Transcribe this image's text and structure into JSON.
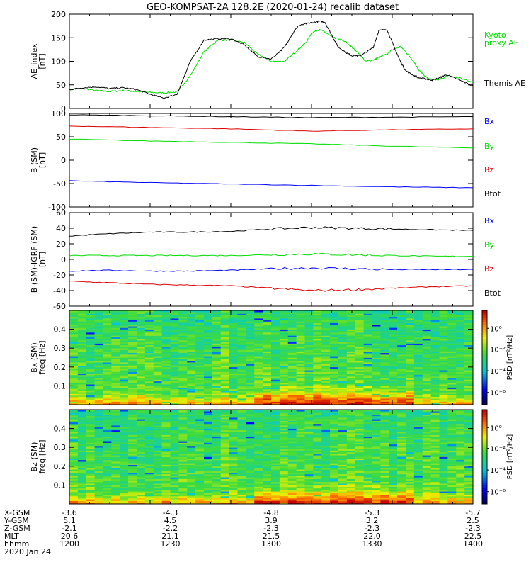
{
  "title": "GEO-KOMPSAT-2A 128.2E (2020-01-24) recalib dataset",
  "colors": {
    "black": "#000000",
    "blue": "#0000ff",
    "green": "#00dd00",
    "red": "#dd0000",
    "kyoto": "#00dd00"
  },
  "chart_data": [
    {
      "type": "line",
      "ylabel": "AE_index [nT]",
      "ylim": [
        0,
        200
      ],
      "yticks": [
        "0",
        "50",
        "100",
        "150",
        "200"
      ],
      "series": [
        {
          "name": "Kyoto proxy AE",
          "color": "#00dd00",
          "x": [
            0,
            5,
            10,
            15,
            20,
            25,
            30,
            35,
            40,
            45,
            50,
            55,
            60,
            65,
            70,
            75,
            80,
            82,
            85,
            88,
            90,
            93,
            95,
            98,
            100,
            103,
            105,
            108,
            110,
            113,
            115,
            118,
            120,
            123,
            125,
            128,
            130,
            133,
            135,
            138,
            140,
            145,
            150
          ],
          "y": [
            40,
            42,
            38,
            36,
            38,
            36,
            34,
            33,
            35,
            70,
            120,
            145,
            145,
            140,
            115,
            100,
            100,
            110,
            125,
            140,
            160,
            168,
            162,
            150,
            148,
            140,
            130,
            115,
            100,
            103,
            108,
            115,
            125,
            132,
            120,
            100,
            80,
            65,
            60,
            62,
            68,
            65,
            55
          ]
        },
        {
          "name": "Themis AE",
          "color": "#000000",
          "x": [
            0,
            5,
            10,
            15,
            20,
            25,
            30,
            35,
            40,
            45,
            50,
            55,
            60,
            65,
            70,
            75,
            80,
            82,
            85,
            88,
            90,
            93,
            95,
            98,
            100,
            103,
            105,
            108,
            110,
            113,
            115,
            118,
            120,
            123,
            125,
            128,
            130,
            133,
            135,
            138,
            140,
            145,
            150
          ],
          "y": [
            40,
            44,
            46,
            42,
            44,
            40,
            30,
            22,
            30,
            100,
            145,
            148,
            148,
            135,
            110,
            105,
            130,
            150,
            175,
            180,
            182,
            185,
            183,
            150,
            130,
            118,
            112,
            112,
            118,
            130,
            165,
            168,
            140,
            100,
            80,
            70,
            65,
            62,
            60,
            66,
            72,
            60,
            48
          ]
        }
      ]
    },
    {
      "type": "line",
      "ylabel": "B (SM) [nT]",
      "ylim": [
        -100,
        100
      ],
      "yticks": [
        "-100",
        "-50",
        "0",
        "50",
        "100"
      ],
      "series": [
        {
          "name": "Bx",
          "color": "#000000",
          "x": [
            0,
            30,
            60,
            90,
            120,
            150
          ],
          "y": [
            97,
            95,
            93,
            91,
            92,
            93
          ]
        },
        {
          "name": "By",
          "color": "#00dd00",
          "x": [
            0,
            30,
            60,
            90,
            120,
            150
          ],
          "y": [
            45,
            41,
            38,
            35,
            30,
            26
          ]
        },
        {
          "name": "Bz",
          "color": "#dd0000",
          "x": [
            0,
            30,
            60,
            90,
            120,
            150
          ],
          "y": [
            73,
            70,
            67,
            62,
            65,
            67
          ]
        },
        {
          "name": "Btot",
          "color": "#0000ff",
          "x": [
            0,
            30,
            60,
            90,
            120,
            150
          ],
          "y": [
            -44,
            -48,
            -51,
            -54,
            -57,
            -59
          ]
        }
      ]
    },
    {
      "type": "line",
      "ylabel": "B (SM)-IGRF (SM) [nT]",
      "ylim": [
        -60,
        60
      ],
      "yticks": [
        "-60",
        "-40",
        "-20",
        "0",
        "20",
        "40",
        "60"
      ],
      "series": [
        {
          "name": "Bx",
          "color": "#000000",
          "x": [
            0,
            15,
            30,
            45,
            60,
            75,
            90,
            105,
            120,
            135,
            150
          ],
          "y": [
            30,
            33,
            35,
            35,
            36,
            39,
            41,
            40,
            39,
            38,
            37
          ]
        },
        {
          "name": "By",
          "color": "#00dd00",
          "x": [
            0,
            15,
            30,
            45,
            60,
            75,
            90,
            105,
            120,
            135,
            150
          ],
          "y": [
            5,
            5,
            5,
            5,
            5,
            6,
            7,
            6,
            5,
            4,
            4
          ]
        },
        {
          "name": "Bz",
          "color": "#0000ff",
          "x": [
            0,
            15,
            30,
            45,
            60,
            75,
            90,
            105,
            120,
            135,
            150
          ],
          "y": [
            -15,
            -14,
            -15,
            -15,
            -14,
            -12,
            -11,
            -12,
            -13,
            -13,
            -13
          ]
        },
        {
          "name": "Btot",
          "color": "#dd0000",
          "x": [
            0,
            15,
            30,
            45,
            60,
            75,
            90,
            105,
            120,
            135,
            150
          ],
          "y": [
            -28,
            -30,
            -32,
            -33,
            -34,
            -37,
            -40,
            -39,
            -37,
            -35,
            -34
          ]
        }
      ]
    },
    {
      "type": "heatmap",
      "ylabel": "Bx (SM) freq [Hz]",
      "ylim": [
        0,
        0.5
      ],
      "yticks": [
        "0.1",
        "0.2",
        "0.3",
        "0.4"
      ],
      "colorbar_label": "PSD [nT²/Hz]",
      "colorbar_ticks": [
        "10⁰",
        "10⁻²",
        "10⁻⁴",
        "10⁻⁶"
      ]
    },
    {
      "type": "heatmap",
      "ylabel": "Bz (SM) freq [Hz]",
      "ylim": [
        0,
        0.5
      ],
      "yticks": [
        "0.1",
        "0.2",
        "0.3",
        "0.4"
      ],
      "colorbar_label": "PSD [nT²/Hz]",
      "colorbar_ticks": [
        "10⁰",
        "10⁻²",
        "10⁻⁴",
        "10⁻⁶"
      ]
    }
  ],
  "xaxis": {
    "row_labels": [
      "X-GSM",
      "Y-GSM",
      "Z-GSM",
      "MLT",
      "hhmm",
      "2020 Jan 24"
    ],
    "columns": [
      [
        "-3.6",
        "5.1",
        "-2.1",
        "20.6",
        "1200"
      ],
      [
        "-4.3",
        "4.5",
        "-2.2",
        "21.1",
        "1230"
      ],
      [
        "-4.8",
        "3.9",
        "-2.3",
        "21.5",
        "1300"
      ],
      [
        "-5.3",
        "3.2",
        "-2.3",
        "22.0",
        "1330"
      ],
      [
        "-5.7",
        "2.5",
        "-2.3",
        "22.5",
        "1400"
      ]
    ]
  },
  "legends": {
    "ae": [
      "Kyoto",
      "proxy AE",
      "Themis AE"
    ],
    "b": [
      "Bx",
      "By",
      "Bz",
      "Btot"
    ]
  }
}
